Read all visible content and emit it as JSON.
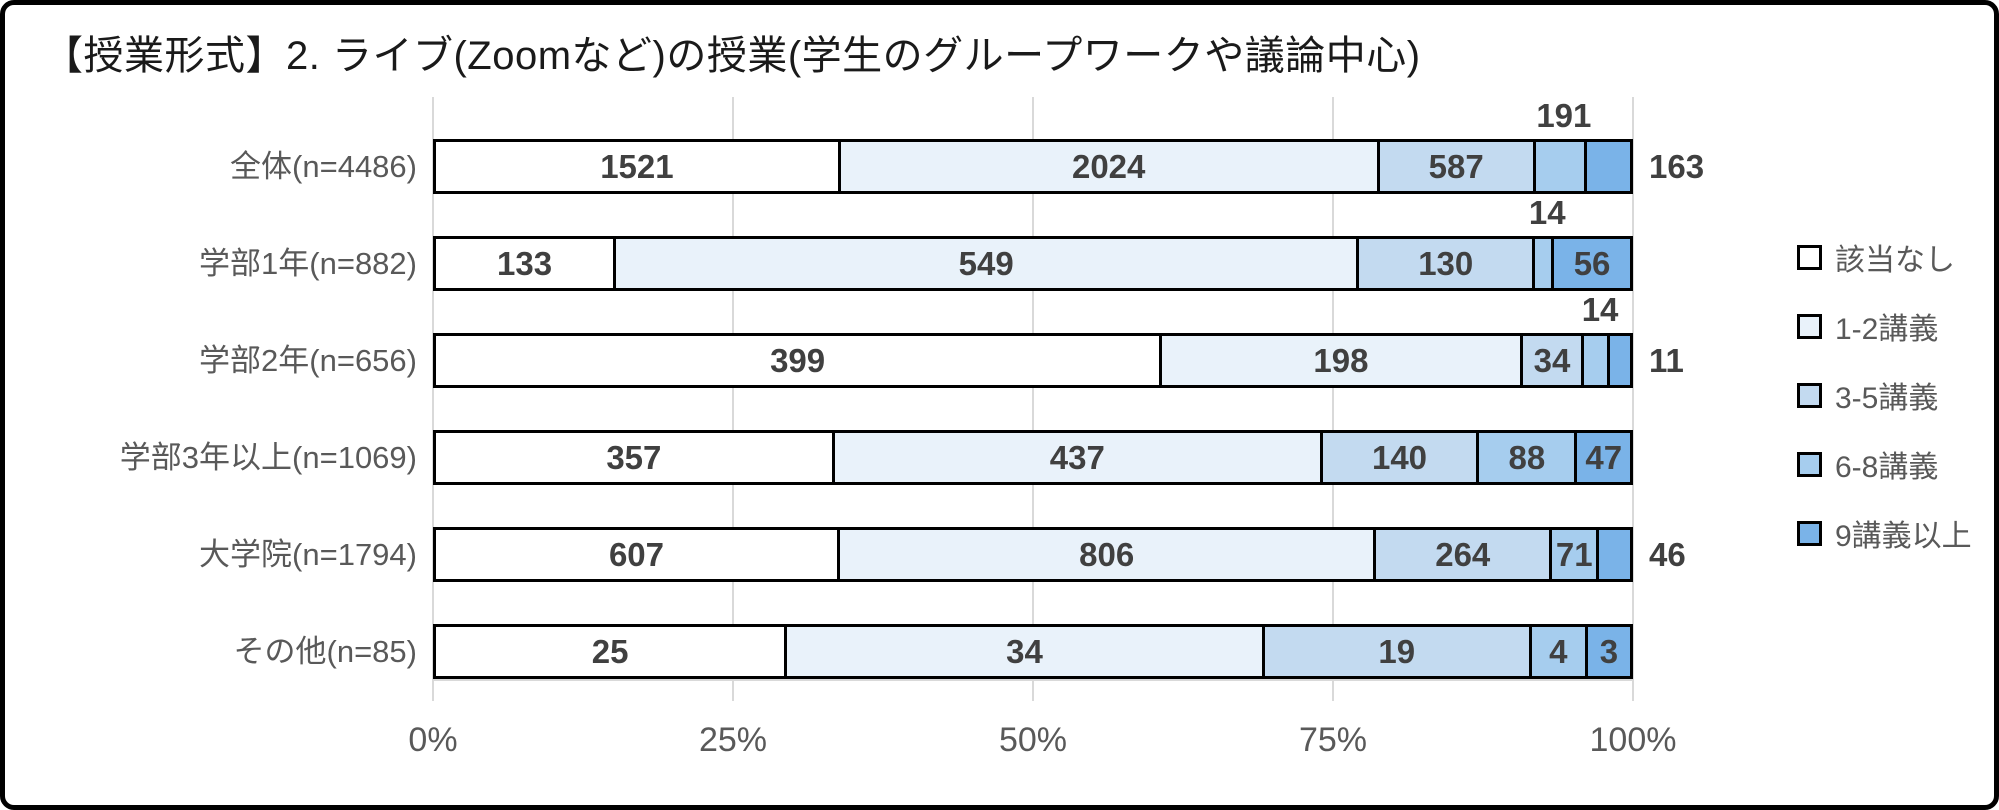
{
  "title": "【授業形式】2. ライブ(Zoomなど)の授業(学生のグループワークや議論中心)",
  "chart_data": {
    "type": "bar",
    "subtype": "stacked-100-horizontal",
    "title": "【授業形式】2. ライブ(Zoomなど)の授業(学生のグループワークや議論中心)",
    "categories": [
      "全体(n=4486)",
      "学部1年(n=882)",
      "学部2年(n=656)",
      "学部3年以上(n=1069)",
      "大学院(n=1794)",
      "その他(n=85)"
    ],
    "row_totals": [
      4486,
      882,
      656,
      1069,
      1794,
      85
    ],
    "series": [
      {
        "name": "該当なし",
        "color": "#FFFFFF",
        "values": [
          1521,
          133,
          399,
          357,
          607,
          25
        ]
      },
      {
        "name": "1-2講義",
        "color": "#E9F2FA",
        "values": [
          2024,
          549,
          198,
          437,
          806,
          34
        ]
      },
      {
        "name": "3-5講義",
        "color": "#C3DAF0",
        "values": [
          587,
          130,
          34,
          140,
          264,
          19
        ]
      },
      {
        "name": "6-8講義",
        "color": "#A6CDEE",
        "values": [
          191,
          14,
          14,
          88,
          71,
          4
        ]
      },
      {
        "name": "9講義以上",
        "color": "#7AB3E8",
        "values": [
          163,
          56,
          11,
          47,
          46,
          3
        ]
      }
    ],
    "value_label_placements": [
      [
        "inside",
        "inside",
        "inside",
        "above",
        "outside"
      ],
      [
        "inside",
        "inside",
        "inside",
        "above",
        "inside"
      ],
      [
        "inside",
        "inside",
        "inside",
        "above",
        "outside"
      ],
      [
        "inside",
        "inside",
        "inside",
        "inside",
        "inside"
      ],
      [
        "inside",
        "inside",
        "inside",
        "inside",
        "outside"
      ],
      [
        "inside",
        "inside",
        "inside",
        "inside",
        "inside"
      ]
    ],
    "x_axis": {
      "min": 0,
      "max": 100,
      "ticks": [
        {
          "label": "0%",
          "pos": 0
        },
        {
          "label": "25%",
          "pos": 25
        },
        {
          "label": "50%",
          "pos": 50
        },
        {
          "label": "75%",
          "pos": 75
        },
        {
          "label": "100%",
          "pos": 100
        }
      ]
    },
    "grid": true,
    "legend_position": "right",
    "legend_items": [
      "該当なし",
      "1-2講義",
      "3-5講義",
      "6-8講義",
      "9講義以上"
    ]
  },
  "colors": {
    "frame_border": "#000000",
    "segment_border": "#000000",
    "grid_line": "#D9D9D9",
    "title_text": "#1A1A1A",
    "value_label": "#404040",
    "category_label": "#595959",
    "axis_label": "#595959",
    "legend_label": "#595959"
  }
}
